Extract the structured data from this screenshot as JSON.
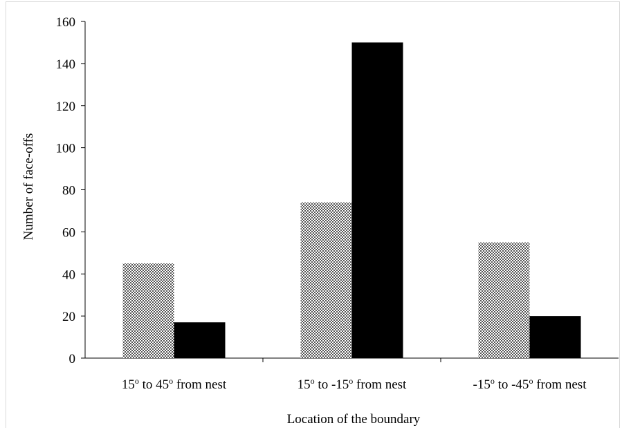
{
  "chart_data": {
    "type": "bar",
    "categories": [
      "15° to 45° from nest",
      "15° to -15° from nest",
      "-15° to -45° from nest"
    ],
    "category_parts": [
      {
        "a": "15",
        "b": " to 45",
        "c": " from nest"
      },
      {
        "a": "15",
        "b": " to -15",
        "c": " from nest"
      },
      {
        "a": "-15",
        "b": " to -45",
        "c": " from nest"
      }
    ],
    "series": [
      {
        "values": [
          45,
          74,
          55
        ],
        "color": "#9a9a9a",
        "pattern": "checker"
      },
      {
        "values": [
          17,
          150,
          20
        ],
        "color": "#000000",
        "pattern": "solid"
      }
    ],
    "title": "",
    "xlabel": "Location of the boundary",
    "ylabel": "Number of face-offs",
    "ylim": [
      0,
      160
    ],
    "yticks": [
      0,
      20,
      40,
      60,
      80,
      100,
      120,
      140,
      160
    ],
    "grid": false,
    "legend": "none"
  }
}
